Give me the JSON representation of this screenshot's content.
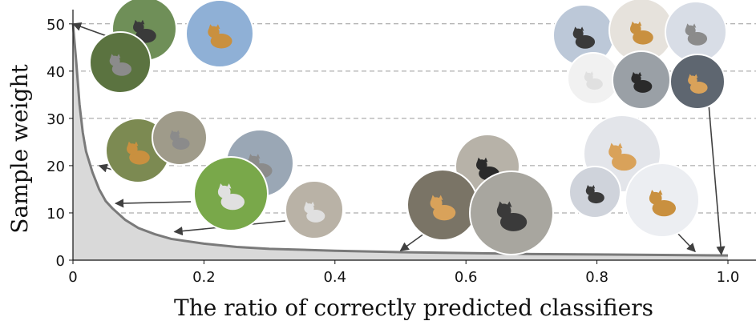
{
  "chart_data": {
    "type": "area",
    "title": "",
    "xlabel": "The ratio of correctly predicted classifiers",
    "ylabel": "Sample weight",
    "xlim": [
      0,
      1.0
    ],
    "ylim": [
      0,
      52
    ],
    "xticks": [
      0,
      0.2,
      0.4,
      0.6,
      0.8,
      1.0
    ],
    "xtick_labels": [
      "0",
      "0.2",
      "0.4",
      "0.6",
      "0.8",
      "1.0"
    ],
    "yticks": [
      0,
      10,
      20,
      30,
      40,
      50
    ],
    "ytick_labels": [
      "0",
      "10",
      "20",
      "30",
      "40",
      "50"
    ],
    "grid": "horizontal-dashed",
    "legend": "none",
    "series": [
      {
        "x": [
          0.0,
          0.005,
          0.01,
          0.015,
          0.02,
          0.03,
          0.04,
          0.05,
          0.06,
          0.08,
          0.1,
          0.125,
          0.15,
          0.2,
          0.25,
          0.3,
          0.4,
          0.5,
          0.6,
          0.7,
          0.8,
          0.9,
          1.0
        ],
        "values": [
          50,
          42,
          33,
          27,
          23,
          18.5,
          15,
          12.5,
          11,
          8.5,
          6.8,
          5.5,
          4.5,
          3.5,
          2.8,
          2.4,
          2.0,
          1.7,
          1.5,
          1.3,
          1.2,
          1.1,
          1.0
        ]
      }
    ],
    "colors": {
      "line": "#7a7a7a",
      "fill": "#d9d9d9",
      "grid": "#9a9a9a",
      "arrow": "#404040"
    },
    "annotations": [
      {
        "target": [
          0.0,
          50
        ],
        "images": [
          "cat-in-tree",
          "cat-black-on-branch",
          "cat-tree-top"
        ]
      },
      {
        "target": [
          0.04,
          20
        ],
        "images": [
          "cat-tabby-on-branch",
          "cat-climbing-tree"
        ]
      },
      {
        "target": [
          0.065,
          12
        ],
        "images": [
          "cat-walking-harbor",
          "cat-orange-on-grass"
        ]
      },
      {
        "target": [
          0.155,
          6
        ],
        "images": [
          "cats-street-group"
        ]
      },
      {
        "target": [
          0.5,
          2
        ],
        "images": [
          "cat-watermarked",
          "cat-orange-lying",
          "cat-lying-pavement"
        ]
      },
      {
        "target": [
          0.95,
          1.8
        ],
        "images": [
          "cat-black-white-snow",
          "cat-black-snow",
          "cat-tabby-snow"
        ]
      },
      {
        "target": [
          0.99,
          1.2
        ],
        "images": [
          "cat-grey-closeup",
          "cat-white-face",
          "cat-tabby-portrait",
          "cat-black-white-in-snow",
          "cat-grey-fluffy",
          "cat-dark-by-window"
        ]
      }
    ]
  }
}
